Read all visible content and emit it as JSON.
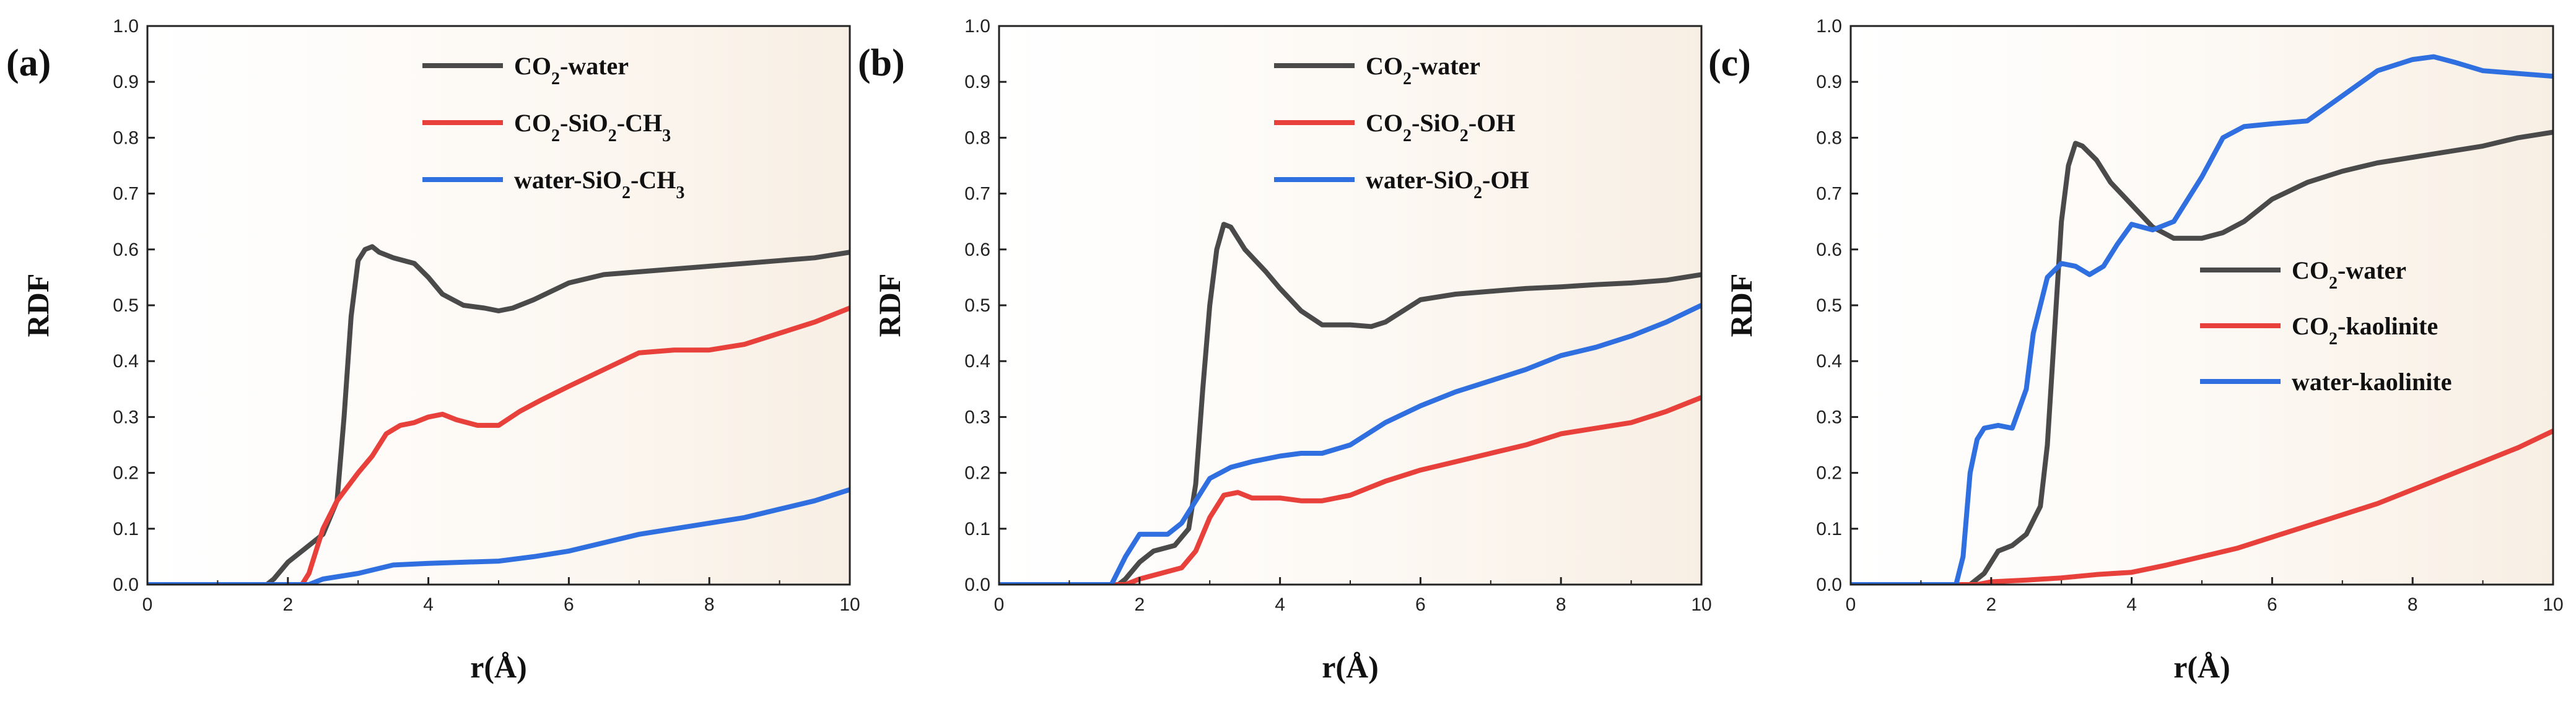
{
  "chart_data": [
    {
      "panel_label": "(a)",
      "type": "line",
      "xlabel": "r(Å)",
      "ylabel": "RDF",
      "xlim": [
        0,
        10
      ],
      "ylim": [
        0,
        1.0
      ],
      "xticks": [
        0,
        2,
        4,
        6,
        8,
        10
      ],
      "yticks": [
        0.0,
        0.1,
        0.2,
        0.3,
        0.4,
        0.5,
        0.6,
        0.7,
        0.8,
        0.9,
        1.0
      ],
      "legend_position": "top-right",
      "series": [
        {
          "name": "CO2-water",
          "legend": {
            "main": "CO",
            "sub": "2",
            "rest": "-water"
          },
          "color": "#4a4a4a",
          "x": [
            0,
            1.7,
            1.8,
            2.0,
            2.2,
            2.5,
            2.7,
            2.8,
            2.9,
            3.0,
            3.1,
            3.2,
            3.3,
            3.5,
            3.8,
            4.0,
            4.2,
            4.5,
            4.8,
            5.0,
            5.2,
            5.5,
            6.0,
            6.5,
            7.0,
            7.5,
            8.0,
            8.5,
            9.0,
            9.5,
            10.0
          ],
          "y": [
            0,
            0,
            0.01,
            0.04,
            0.06,
            0.09,
            0.15,
            0.3,
            0.48,
            0.58,
            0.6,
            0.605,
            0.595,
            0.585,
            0.575,
            0.55,
            0.52,
            0.5,
            0.495,
            0.49,
            0.495,
            0.51,
            0.54,
            0.555,
            0.56,
            0.565,
            0.57,
            0.575,
            0.58,
            0.585,
            0.595
          ]
        },
        {
          "name": "CO2-SiO2-CH3",
          "legend": {
            "main": "CO",
            "sub": "2",
            "rest": "-SiO",
            "sub2": "2",
            "rest2": "-CH",
            "sub3": "3"
          },
          "color": "#e8403a",
          "x": [
            0,
            2.2,
            2.3,
            2.5,
            2.7,
            3.0,
            3.2,
            3.4,
            3.6,
            3.8,
            4.0,
            4.2,
            4.4,
            4.7,
            5.0,
            5.3,
            5.6,
            6.0,
            6.5,
            7.0,
            7.5,
            8.0,
            8.5,
            9.0,
            9.5,
            10.0
          ],
          "y": [
            0,
            0,
            0.02,
            0.1,
            0.15,
            0.2,
            0.23,
            0.27,
            0.285,
            0.29,
            0.3,
            0.305,
            0.295,
            0.285,
            0.285,
            0.31,
            0.33,
            0.355,
            0.385,
            0.415,
            0.42,
            0.42,
            0.43,
            0.45,
            0.47,
            0.495
          ]
        },
        {
          "name": "water-SiO2-CH3",
          "legend": {
            "main": "water-SiO",
            "sub": "2",
            "rest": "-CH",
            "sub2": "3"
          },
          "color": "#2f6fe0",
          "x": [
            0,
            2.3,
            2.5,
            3.0,
            3.5,
            4.0,
            4.5,
            5.0,
            5.5,
            6.0,
            6.5,
            7.0,
            7.5,
            8.0,
            8.5,
            9.0,
            9.5,
            10.0
          ],
          "y": [
            0,
            0,
            0.01,
            0.02,
            0.035,
            0.038,
            0.04,
            0.042,
            0.05,
            0.06,
            0.075,
            0.09,
            0.1,
            0.11,
            0.12,
            0.135,
            0.15,
            0.17
          ]
        }
      ]
    },
    {
      "panel_label": "(b)",
      "type": "line",
      "xlabel": "r(Å)",
      "ylabel": "RDF",
      "xlim": [
        0,
        10
      ],
      "ylim": [
        0,
        1.0
      ],
      "xticks": [
        0,
        2,
        4,
        6,
        8,
        10
      ],
      "yticks": [
        0.0,
        0.1,
        0.2,
        0.3,
        0.4,
        0.5,
        0.6,
        0.7,
        0.8,
        0.9,
        1.0
      ],
      "legend_position": "top-right",
      "series": [
        {
          "name": "CO2-water",
          "legend": {
            "main": "CO",
            "sub": "2",
            "rest": "-water"
          },
          "color": "#4a4a4a",
          "x": [
            0,
            1.7,
            1.8,
            2.0,
            2.2,
            2.5,
            2.7,
            2.8,
            2.9,
            3.0,
            3.1,
            3.2,
            3.3,
            3.5,
            3.8,
            4.0,
            4.3,
            4.6,
            5.0,
            5.3,
            5.5,
            6.0,
            6.5,
            7.0,
            7.5,
            8.0,
            8.5,
            9.0,
            9.5,
            10.0
          ],
          "y": [
            0,
            0,
            0.01,
            0.04,
            0.06,
            0.07,
            0.1,
            0.18,
            0.35,
            0.5,
            0.6,
            0.645,
            0.64,
            0.6,
            0.56,
            0.53,
            0.49,
            0.465,
            0.465,
            0.462,
            0.47,
            0.51,
            0.52,
            0.525,
            0.53,
            0.533,
            0.537,
            0.54,
            0.545,
            0.555
          ]
        },
        {
          "name": "CO2-SiO2-OH",
          "legend": {
            "main": "CO",
            "sub": "2",
            "rest": "-SiO",
            "sub2": "2",
            "rest2": "-OH"
          },
          "color": "#e8403a",
          "x": [
            0,
            1.8,
            2.0,
            2.3,
            2.6,
            2.8,
            3.0,
            3.2,
            3.4,
            3.6,
            4.0,
            4.3,
            4.6,
            5.0,
            5.5,
            6.0,
            6.5,
            7.0,
            7.5,
            8.0,
            8.5,
            9.0,
            9.5,
            10.0
          ],
          "y": [
            0,
            0,
            0.01,
            0.02,
            0.03,
            0.06,
            0.12,
            0.16,
            0.165,
            0.155,
            0.155,
            0.15,
            0.15,
            0.16,
            0.185,
            0.205,
            0.22,
            0.235,
            0.25,
            0.27,
            0.28,
            0.29,
            0.31,
            0.335
          ]
        },
        {
          "name": "water-SiO2-OH",
          "legend": {
            "main": "water-SiO",
            "sub": "2",
            "rest": "-OH"
          },
          "color": "#2f6fe0",
          "x": [
            0,
            1.6,
            1.8,
            2.0,
            2.2,
            2.4,
            2.6,
            2.8,
            3.0,
            3.3,
            3.6,
            4.0,
            4.3,
            4.6,
            5.0,
            5.5,
            6.0,
            6.5,
            7.0,
            7.5,
            8.0,
            8.5,
            9.0,
            9.5,
            10.0
          ],
          "y": [
            0,
            0,
            0.05,
            0.09,
            0.09,
            0.09,
            0.11,
            0.15,
            0.19,
            0.21,
            0.22,
            0.23,
            0.235,
            0.235,
            0.25,
            0.29,
            0.32,
            0.345,
            0.365,
            0.385,
            0.41,
            0.425,
            0.445,
            0.47,
            0.5
          ]
        }
      ]
    },
    {
      "panel_label": "(c)",
      "type": "line",
      "xlabel": "r(Å)",
      "ylabel": "RDF",
      "xlim": [
        0,
        10
      ],
      "ylim": [
        0,
        1.0
      ],
      "xticks": [
        0,
        2,
        4,
        6,
        8,
        10
      ],
      "yticks": [
        0.0,
        0.1,
        0.2,
        0.3,
        0.4,
        0.5,
        0.6,
        0.7,
        0.8,
        0.9,
        1.0
      ],
      "legend_position": "center-right",
      "series": [
        {
          "name": "CO2-water",
          "legend": {
            "main": "CO",
            "sub": "2",
            "rest": "-water"
          },
          "color": "#4a4a4a",
          "x": [
            0,
            1.7,
            1.9,
            2.1,
            2.3,
            2.5,
            2.7,
            2.8,
            2.9,
            3.0,
            3.1,
            3.2,
            3.3,
            3.5,
            3.7,
            4.0,
            4.3,
            4.6,
            5.0,
            5.3,
            5.6,
            6.0,
            6.5,
            7.0,
            7.5,
            8.0,
            8.5,
            9.0,
            9.5,
            10.0
          ],
          "y": [
            0,
            0,
            0.02,
            0.06,
            0.07,
            0.09,
            0.14,
            0.25,
            0.45,
            0.65,
            0.75,
            0.79,
            0.785,
            0.76,
            0.72,
            0.68,
            0.64,
            0.62,
            0.62,
            0.63,
            0.65,
            0.69,
            0.72,
            0.74,
            0.755,
            0.765,
            0.775,
            0.785,
            0.8,
            0.81
          ]
        },
        {
          "name": "CO2-kaolinite",
          "legend": {
            "main": "CO",
            "sub": "2",
            "rest": "-kaolinite"
          },
          "color": "#e8403a",
          "x": [
            0,
            1.8,
            2.0,
            2.5,
            3.0,
            3.5,
            4.0,
            4.5,
            5.0,
            5.5,
            6.0,
            6.5,
            7.0,
            7.5,
            8.0,
            8.5,
            9.0,
            9.5,
            10.0
          ],
          "y": [
            0,
            0,
            0.005,
            0.008,
            0.012,
            0.018,
            0.022,
            0.035,
            0.05,
            0.065,
            0.085,
            0.105,
            0.125,
            0.145,
            0.17,
            0.195,
            0.22,
            0.245,
            0.275
          ]
        },
        {
          "name": "water-kaolinite",
          "legend": {
            "main": "water-kaolinite"
          },
          "color": "#2f6fe0",
          "x": [
            0,
            1.5,
            1.6,
            1.7,
            1.8,
            1.9,
            2.1,
            2.3,
            2.5,
            2.6,
            2.7,
            2.8,
            3.0,
            3.2,
            3.4,
            3.6,
            3.8,
            4.0,
            4.3,
            4.6,
            5.0,
            5.3,
            5.6,
            6.0,
            6.5,
            7.0,
            7.5,
            8.0,
            8.3,
            8.6,
            9.0,
            9.5,
            10.0
          ],
          "y": [
            0,
            0,
            0.05,
            0.2,
            0.26,
            0.28,
            0.285,
            0.28,
            0.35,
            0.45,
            0.5,
            0.55,
            0.575,
            0.57,
            0.555,
            0.57,
            0.61,
            0.645,
            0.635,
            0.65,
            0.73,
            0.8,
            0.82,
            0.825,
            0.83,
            0.875,
            0.92,
            0.94,
            0.945,
            0.935,
            0.92,
            0.915,
            0.91
          ]
        }
      ]
    }
  ]
}
